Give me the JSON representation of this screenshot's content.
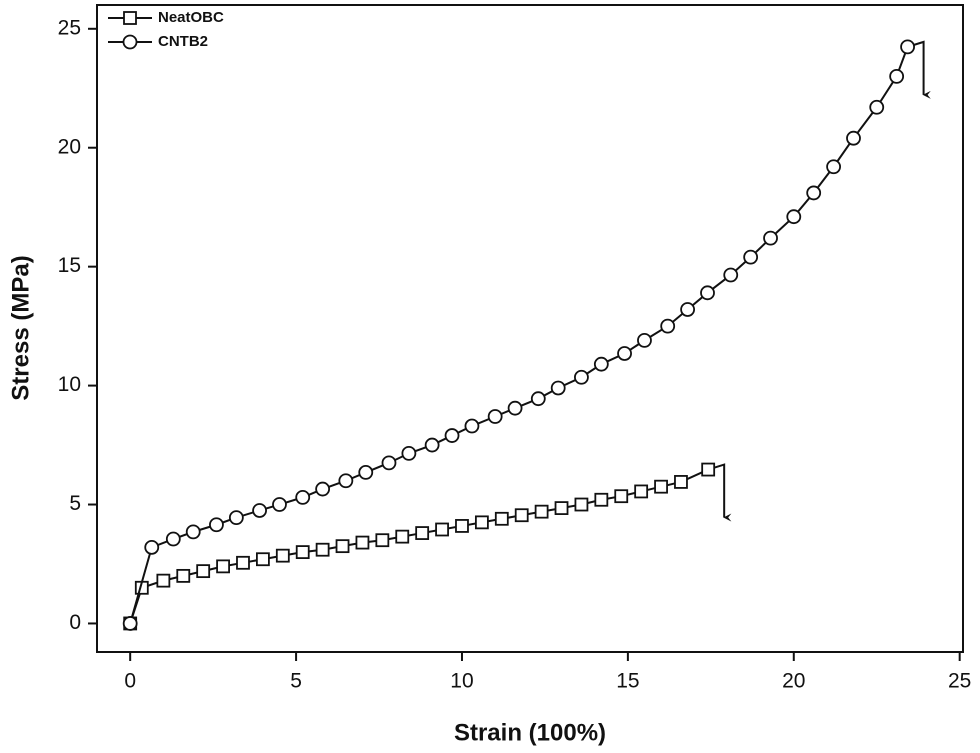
{
  "chart_data": {
    "type": "line",
    "xlabel": "Strain (100%)",
    "ylabel": "Stress (MPa)",
    "xlim": [
      -1,
      25.1
    ],
    "ylim": [
      -1.2,
      26
    ],
    "xticks": [
      0,
      5,
      10,
      15,
      20,
      25
    ],
    "yticks": [
      0,
      5,
      10,
      15,
      20,
      25
    ],
    "legend": "upper left",
    "series": [
      {
        "name": "NeatOBC",
        "marker": "square",
        "color": "#111111",
        "x": [
          0,
          0.35,
          1.0,
          1.6,
          2.2,
          2.8,
          3.4,
          4.0,
          4.6,
          5.2,
          5.8,
          6.4,
          7.0,
          7.6,
          8.2,
          8.8,
          9.4,
          10.0,
          10.6,
          11.2,
          11.8,
          12.4,
          13.0,
          13.6,
          14.2,
          14.8,
          15.4,
          16.0,
          16.6,
          17.42
        ],
        "values": [
          0,
          1.5,
          1.8,
          2.0,
          2.2,
          2.4,
          2.55,
          2.7,
          2.85,
          3.0,
          3.1,
          3.25,
          3.4,
          3.5,
          3.65,
          3.8,
          3.95,
          4.1,
          4.25,
          4.4,
          4.55,
          4.7,
          4.85,
          5.0,
          5.2,
          5.35,
          5.55,
          5.75,
          5.95,
          6.47
        ]
      },
      {
        "name": "CNTB2",
        "marker": "circle",
        "color": "#111111",
        "x": [
          0,
          0.65,
          1.3,
          1.9,
          2.6,
          3.2,
          3.9,
          4.5,
          5.2,
          5.8,
          6.5,
          7.1,
          7.8,
          8.4,
          9.1,
          9.7,
          10.3,
          11.0,
          11.6,
          12.3,
          12.9,
          13.6,
          14.2,
          14.9,
          15.5,
          16.2,
          16.8,
          17.4,
          18.1,
          18.7,
          19.3,
          20.0,
          20.6,
          21.2,
          21.8,
          22.5,
          23.1,
          23.43
        ],
        "values": [
          0,
          3.2,
          3.55,
          3.85,
          4.15,
          4.45,
          4.75,
          5.0,
          5.3,
          5.65,
          6.0,
          6.35,
          6.75,
          7.15,
          7.5,
          7.9,
          8.3,
          8.7,
          9.05,
          9.45,
          9.9,
          10.35,
          10.9,
          11.35,
          11.9,
          12.5,
          13.2,
          13.9,
          14.65,
          15.4,
          16.2,
          17.1,
          18.1,
          19.2,
          20.4,
          21.7,
          23.0,
          24.24
        ]
      }
    ]
  }
}
